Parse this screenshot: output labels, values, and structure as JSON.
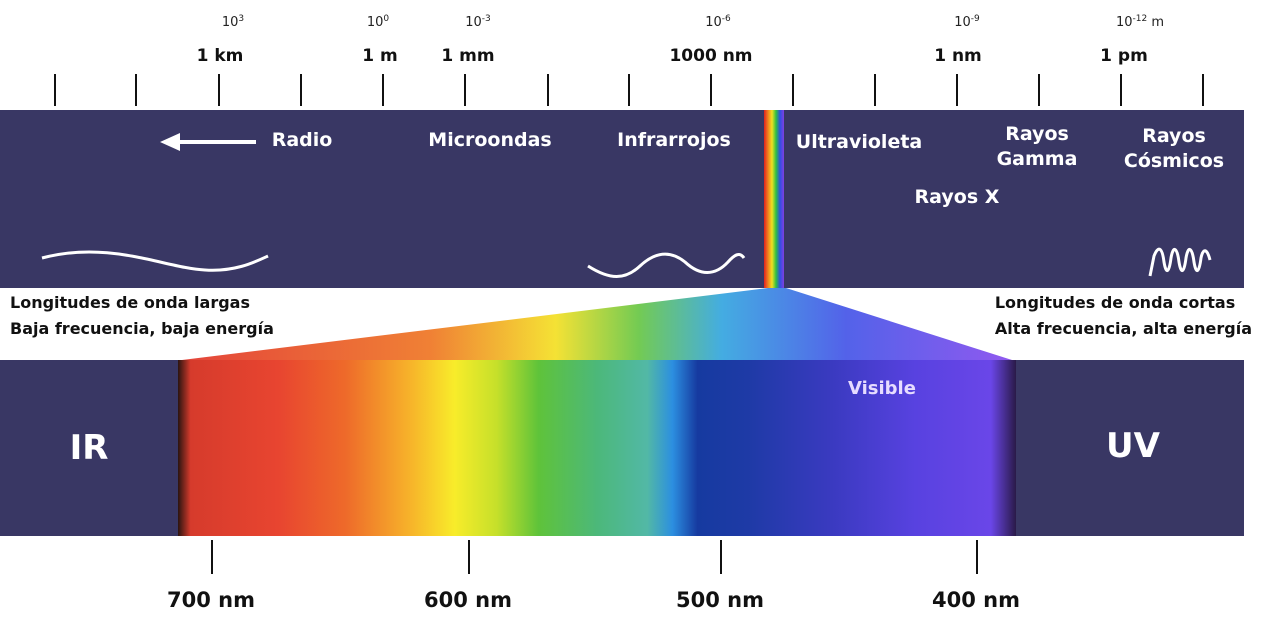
{
  "scale": {
    "exponents": [
      {
        "base": "10",
        "exp": "3",
        "suffix": ""
      },
      {
        "base": "10",
        "exp": "0",
        "suffix": ""
      },
      {
        "base": "10",
        "exp": "-3",
        "suffix": ""
      },
      {
        "base": "10",
        "exp": "-6",
        "suffix": ""
      },
      {
        "base": "10",
        "exp": "-9",
        "suffix": ""
      },
      {
        "base": "10",
        "exp": "-12",
        "suffix": " m"
      }
    ],
    "units": [
      "1 km",
      "1 m",
      "1 mm",
      "1000 nm",
      "1 nm",
      "1 pm"
    ]
  },
  "bands": {
    "radio": "Radio",
    "microwave": "Microondas",
    "infrared": "Infrarrojos",
    "ultraviolet": "Ultravioleta",
    "gamma_line1": "Rayos",
    "gamma_line2": "Gamma",
    "cosmic_line1": "Rayos",
    "cosmic_line2": "Cósmicos",
    "xray": "Rayos X"
  },
  "notes": {
    "left_line1": "Longitudes de onda largas",
    "left_line2": "Baja frecuencia, baja energía",
    "right_line1": "Longitudes de onda cortas",
    "right_line2": "Alta frecuencia, alta energía"
  },
  "visible": {
    "label": "Visible",
    "ir": "IR",
    "uv": "UV",
    "wavelengths": [
      "700 nm",
      "600 nm",
      "500 nm",
      "400 nm"
    ]
  },
  "colors": {
    "band": "#393764",
    "text_on_band": "#ffffff"
  }
}
